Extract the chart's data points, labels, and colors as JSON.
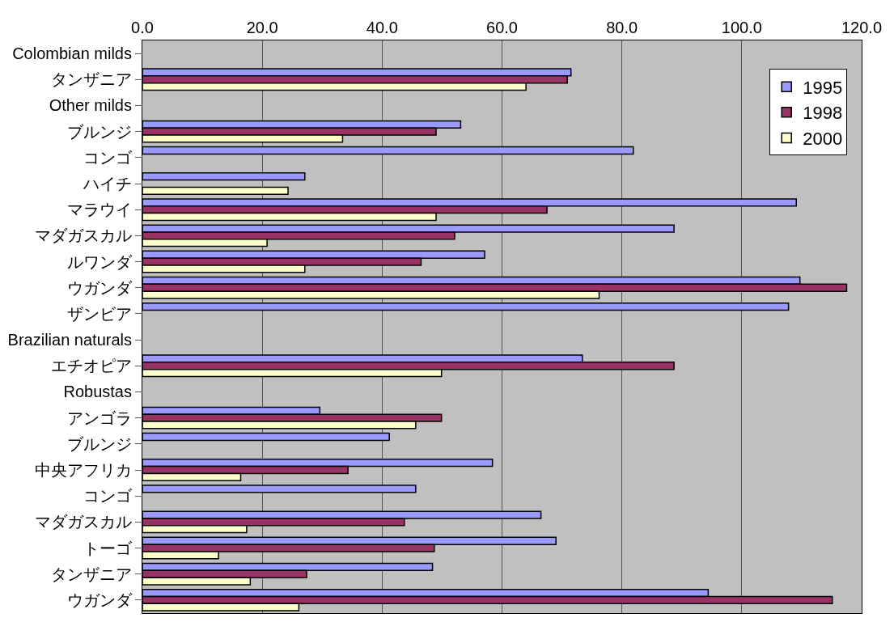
{
  "chart_data": {
    "type": "bar",
    "orientation": "horizontal",
    "categories": [
      "Colombian milds",
      "タンザニア",
      "Other milds",
      "ブルンジ",
      "コンゴ",
      "ハイチ",
      "マラウイ",
      "マダガスカル",
      "ルワンダ",
      "ウガンダ",
      "ザンビア",
      "Brazilian naturals",
      "エチオピア",
      "Robustas",
      "アンゴラ",
      "ブルンジ",
      "中央アフリカ",
      "コンゴ",
      "マダガスカル",
      "トーゴ",
      "タンザニア",
      "ウガンダ"
    ],
    "series": [
      {
        "name": "1995",
        "color": "#9999ff",
        "values": [
          null,
          71.5,
          null,
          53.1,
          81.9,
          27.1,
          109.1,
          88.7,
          57.1,
          109.7,
          107.8,
          null,
          73.4,
          null,
          29.6,
          41.2,
          58.4,
          45.6,
          66.5,
          69.0,
          48.4,
          94.4
        ]
      },
      {
        "name": "1998",
        "color": "#993366",
        "values": [
          null,
          70.9,
          null,
          49.0,
          null,
          null,
          67.5,
          52.1,
          46.5,
          117.5,
          null,
          null,
          88.7,
          null,
          49.9,
          null,
          34.3,
          null,
          43.7,
          48.7,
          27.4,
          115.1
        ]
      },
      {
        "name": "2000",
        "color": "#ffffcc",
        "values": [
          null,
          64.0,
          null,
          33.4,
          null,
          24.3,
          49.0,
          20.8,
          27.1,
          76.2,
          null,
          null,
          49.9,
          null,
          45.6,
          null,
          16.4,
          null,
          17.4,
          12.7,
          18.0,
          26.1
        ]
      }
    ],
    "xlim": [
      0,
      120
    ],
    "xticks": [
      {
        "value": 0,
        "label": "0.0"
      },
      {
        "value": 20,
        "label": "20.0"
      },
      {
        "value": 40,
        "label": "40.0"
      },
      {
        "value": 60,
        "label": "60.0"
      },
      {
        "value": 80,
        "label": "80.0"
      },
      {
        "value": 100,
        "label": "100.0"
      },
      {
        "value": 120,
        "label": "120.0"
      }
    ],
    "grid": "x",
    "legend": "top right"
  }
}
